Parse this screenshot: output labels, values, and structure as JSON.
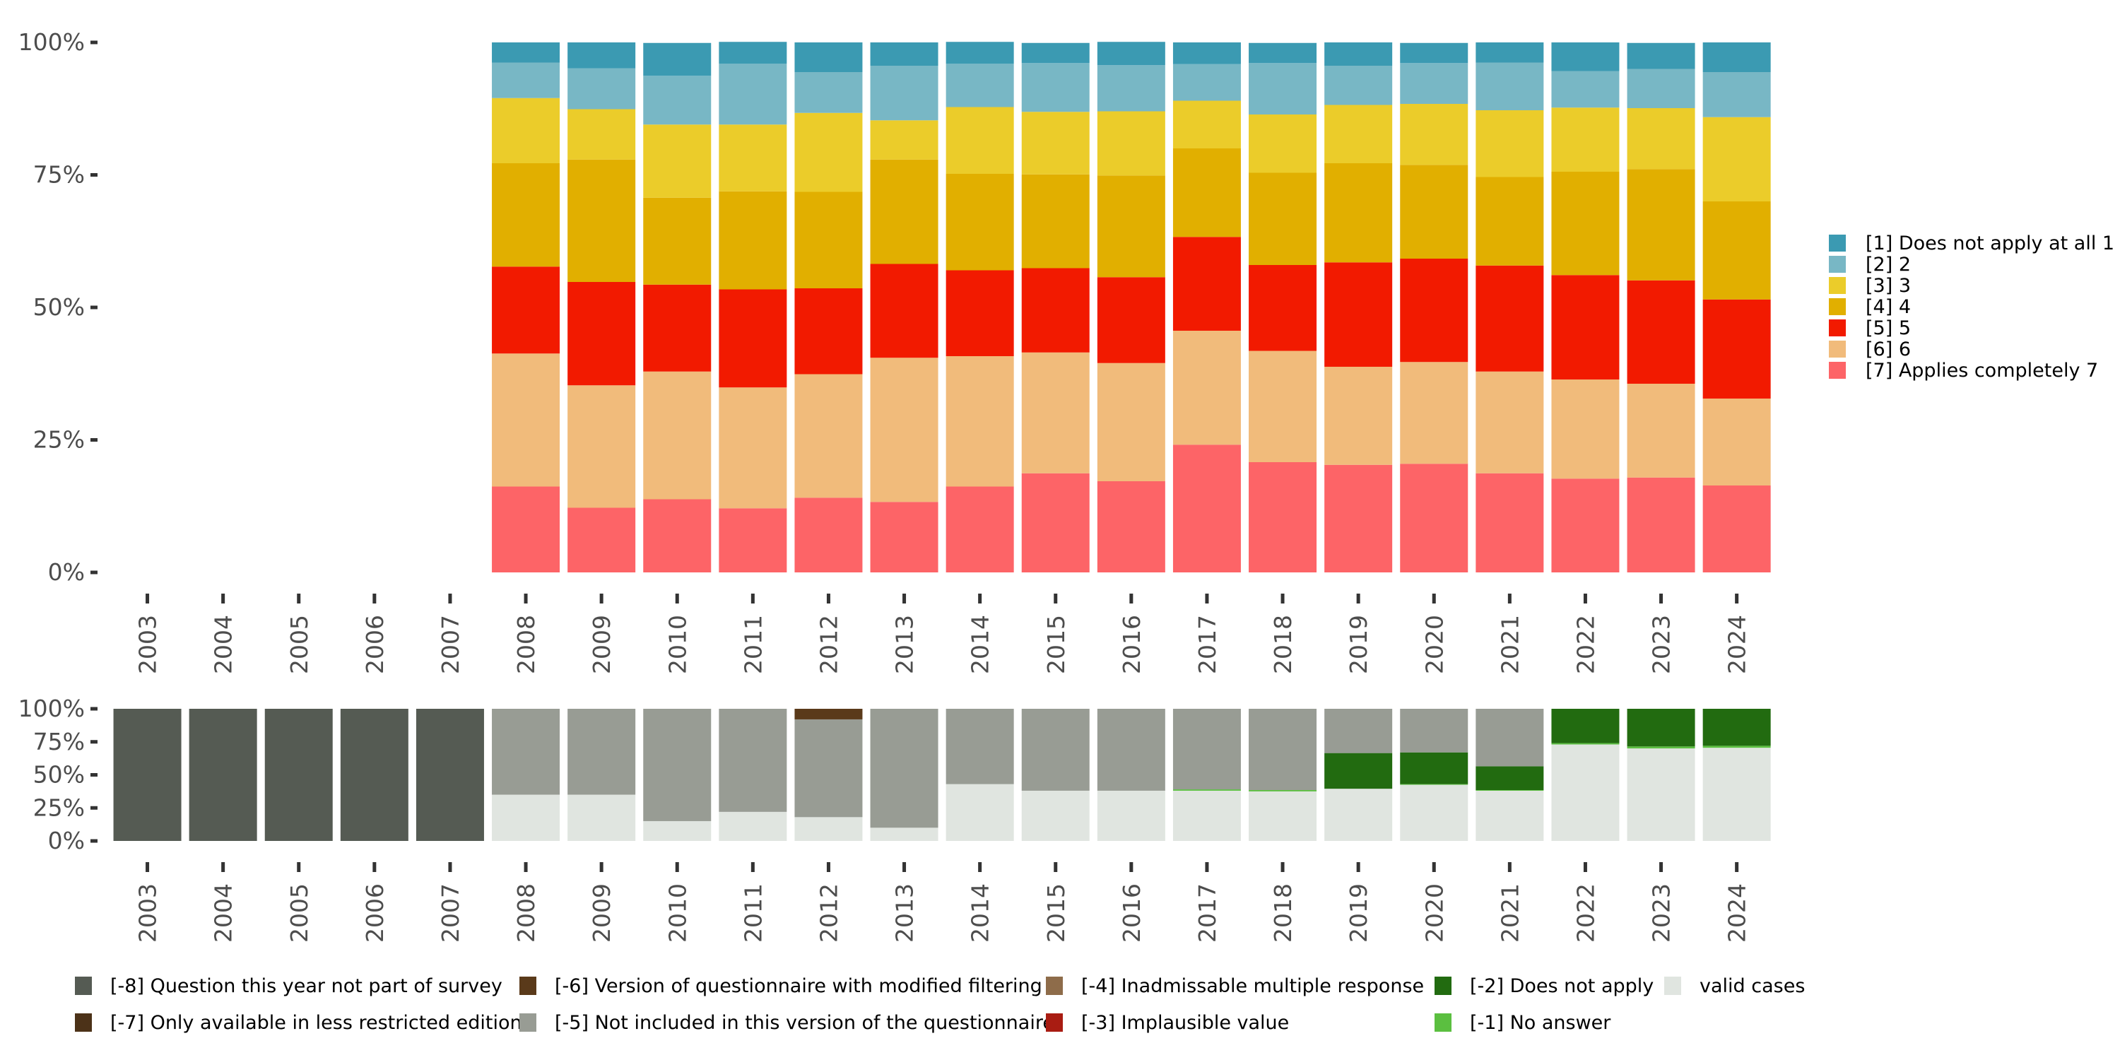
{
  "chart_data": [
    {
      "type": "bar",
      "stacked": true,
      "normalized": true,
      "title": "",
      "xlabel": "",
      "ylabel": "",
      "ylim": [
        0,
        100
      ],
      "yticks": [
        "0%",
        "25%",
        "50%",
        "75%",
        "100%"
      ],
      "categories": [
        "2003",
        "2004",
        "2005",
        "2006",
        "2007",
        "2008",
        "2009",
        "2010",
        "2011",
        "2012",
        "2013",
        "2014",
        "2015",
        "2016",
        "2017",
        "2018",
        "2019",
        "2020",
        "2021",
        "2022",
        "2023",
        "2024"
      ],
      "legend_position": "right",
      "series": [
        {
          "name": "[1] Does not apply at all 1",
          "color": "#3B9AB2",
          "values": [
            null,
            null,
            null,
            null,
            null,
            3.8,
            4.9,
            6.2,
            4.1,
            5.6,
            4.4,
            4.1,
            3.8,
            4.4,
            4.1,
            3.8,
            4.4,
            3.8,
            3.8,
            5.4,
            4.9,
            5.6
          ]
        },
        {
          "name": "[2] 2",
          "color": "#78B7C5",
          "values": [
            null,
            null,
            null,
            null,
            null,
            6.7,
            7.7,
            9.2,
            11.5,
            7.7,
            10.3,
            8.2,
            9.2,
            8.7,
            6.9,
            9.7,
            7.4,
            7.7,
            9.0,
            6.9,
            7.4,
            8.5
          ]
        },
        {
          "name": "[3] 3",
          "color": "#EBCC2A",
          "values": [
            null,
            null,
            null,
            null,
            null,
            12.3,
            9.5,
            13.8,
            12.6,
            14.9,
            7.4,
            12.6,
            11.8,
            12.1,
            9.0,
            11.0,
            11.0,
            11.5,
            12.6,
            12.1,
            11.5,
            15.9
          ]
        },
        {
          "name": "[4] 4",
          "color": "#E1AF00",
          "values": [
            null,
            null,
            null,
            null,
            null,
            19.5,
            23.1,
            16.4,
            18.5,
            18.2,
            19.7,
            18.2,
            17.7,
            19.2,
            16.7,
            17.4,
            18.7,
            17.7,
            16.7,
            19.5,
            21.0,
            18.5
          ]
        },
        {
          "name": "[5] 5",
          "color": "#F21A00",
          "values": [
            null,
            null,
            null,
            null,
            null,
            16.4,
            19.5,
            16.4,
            18.5,
            16.2,
            17.7,
            16.2,
            15.9,
            16.2,
            17.7,
            16.2,
            19.7,
            19.5,
            20.0,
            19.7,
            19.5,
            18.7
          ]
        },
        {
          "name": "[6] 6",
          "color": "#F1BB7B",
          "values": [
            null,
            null,
            null,
            null,
            null,
            25.1,
            23.1,
            24.1,
            22.8,
            23.3,
            27.2,
            24.6,
            22.8,
            22.3,
            21.5,
            21.0,
            18.5,
            19.2,
            19.2,
            18.7,
            17.7,
            16.4
          ]
        },
        {
          "name": "[7] Applies completely 7",
          "color": "#FD6467",
          "values": [
            null,
            null,
            null,
            null,
            null,
            16.2,
            12.2,
            13.8,
            12.1,
            14.1,
            13.3,
            16.2,
            18.7,
            17.2,
            24.1,
            20.8,
            20.3,
            20.5,
            18.7,
            17.7,
            17.9,
            16.4
          ]
        }
      ]
    },
    {
      "type": "bar",
      "stacked": true,
      "normalized": true,
      "title": "",
      "xlabel": "",
      "ylabel": "",
      "ylim": [
        0,
        100
      ],
      "yticks": [
        "0%",
        "25%",
        "50%",
        "75%",
        "100%"
      ],
      "categories": [
        "2003",
        "2004",
        "2005",
        "2006",
        "2007",
        "2008",
        "2009",
        "2010",
        "2011",
        "2012",
        "2013",
        "2014",
        "2015",
        "2016",
        "2017",
        "2018",
        "2019",
        "2020",
        "2021",
        "2022",
        "2023",
        "2024"
      ],
      "legend_position": "bottom",
      "series": [
        {
          "name": "[-8] Question this year not part of survey",
          "color": "#555B53",
          "values": [
            100,
            100,
            100,
            100,
            100,
            0,
            0,
            0,
            0,
            0,
            0,
            0,
            0,
            0,
            0,
            0,
            0,
            0,
            0,
            0,
            0,
            0
          ]
        },
        {
          "name": "[-7] Only available in less restricted edition",
          "color": "#4C3218",
          "values": [
            0,
            0,
            0,
            0,
            0,
            0,
            0,
            0,
            0,
            0,
            0,
            0,
            0,
            0,
            0,
            0,
            0,
            0,
            0,
            0,
            0,
            0
          ]
        },
        {
          "name": "[-6] Version of questionnaire with modified filtering",
          "color": "#5A3A1A",
          "values": [
            0,
            0,
            0,
            0,
            0,
            0,
            0,
            0,
            0,
            8,
            0,
            0,
            0,
            0,
            0,
            0,
            0,
            0,
            0,
            0,
            0,
            0
          ]
        },
        {
          "name": "[-5] Not included in this version of the questionnaire",
          "color": "#989C94",
          "values": [
            0,
            0,
            0,
            0,
            0,
            65,
            65,
            85,
            78,
            74,
            90,
            57,
            62,
            62,
            61,
            61.5,
            33.5,
            33,
            43.5,
            0,
            0,
            0
          ]
        },
        {
          "name": "[-4] Inadmissable multiple response",
          "color": "#8E6C4A",
          "values": [
            0,
            0,
            0,
            0,
            0,
            0,
            0,
            0,
            0,
            0,
            0,
            0,
            0,
            0,
            0,
            0,
            0,
            0,
            0,
            0,
            0,
            0
          ]
        },
        {
          "name": "[-3] Implausible value",
          "color": "#A91C12",
          "values": [
            0,
            0,
            0,
            0,
            0,
            0,
            0,
            0,
            0,
            0,
            0,
            0,
            0,
            0,
            0,
            0,
            0,
            0,
            0,
            0,
            0,
            0
          ]
        },
        {
          "name": "[-2] Does not apply",
          "color": "#226B10",
          "values": [
            0,
            0,
            0,
            0,
            0,
            0,
            0,
            0,
            0,
            0,
            0,
            0,
            0,
            0,
            0,
            0,
            27,
            24,
            18,
            26,
            28.5,
            28
          ]
        },
        {
          "name": "[-1] No answer",
          "color": "#5BBF40",
          "values": [
            0,
            0,
            0,
            0,
            0,
            0,
            0,
            0,
            0,
            0,
            0,
            0,
            0,
            0,
            1,
            1,
            0,
            0.5,
            0.5,
            1,
            1.5,
            1.5
          ]
        },
        {
          "name": "valid cases",
          "color": "#E0E5E0",
          "values": [
            0,
            0,
            0,
            0,
            0,
            35,
            35,
            15,
            22,
            18,
            10,
            43,
            38,
            38,
            38,
            37.5,
            39.5,
            42.5,
            38,
            73,
            70,
            70.5
          ]
        }
      ],
      "legend_order": [
        "[-8] Question this year not part of survey",
        "[-7] Only available in less restricted edition",
        "[-6] Version of questionnaire with modified filtering",
        "[-5] Not included in this version of the questionnaire",
        "[-4] Inadmissable multiple response",
        "[-3] Implausible value",
        "[-2] Does not apply",
        "[-1] No answer",
        "valid cases"
      ]
    }
  ]
}
